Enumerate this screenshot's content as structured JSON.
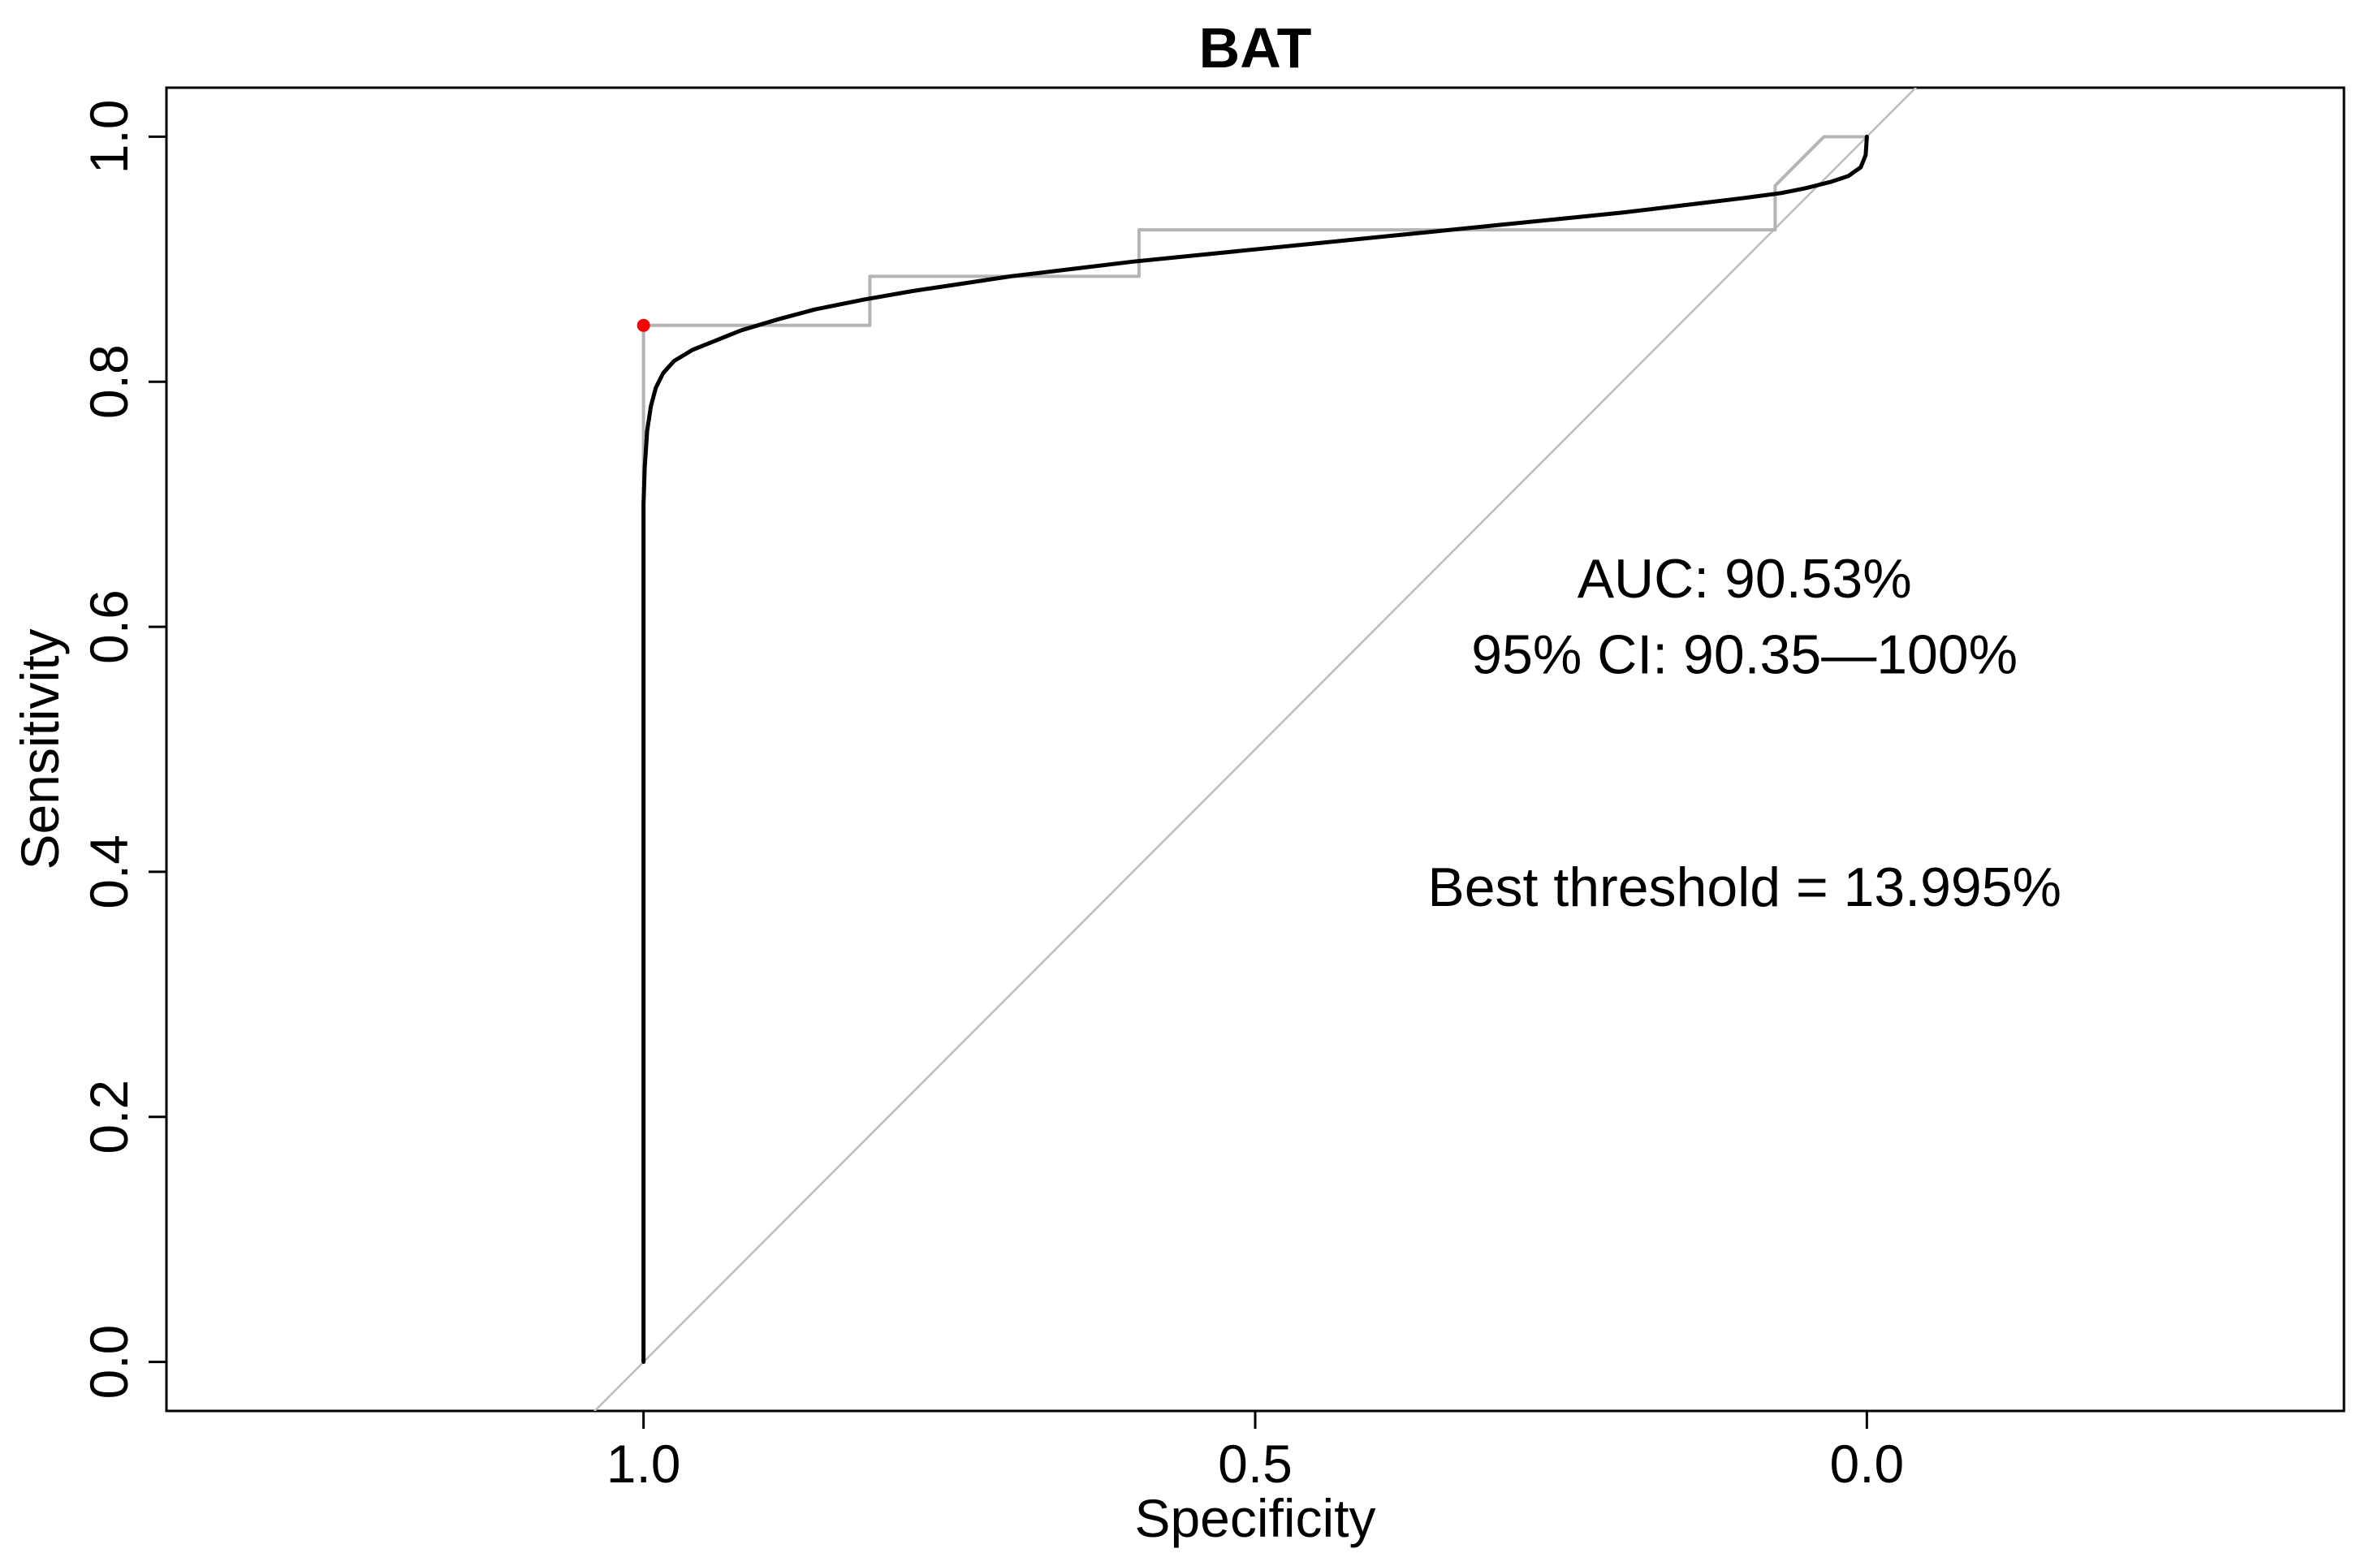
{
  "chart_data": {
    "type": "line",
    "title": "BAT",
    "xlabel": "Specificity",
    "ylabel": "Sensitivity",
    "x_reversed": true,
    "xlim": [
      1.39,
      -0.39
    ],
    "ylim": [
      -0.04,
      1.04
    ],
    "xticks": [
      {
        "value": 1.0,
        "label": "1.0"
      },
      {
        "value": 0.5,
        "label": "0.5"
      },
      {
        "value": 0.0,
        "label": "0.0"
      }
    ],
    "yticks": [
      {
        "value": 0.0,
        "label": "0.0"
      },
      {
        "value": 0.2,
        "label": "0.2"
      },
      {
        "value": 0.4,
        "label": "0.4"
      },
      {
        "value": 0.6,
        "label": "0.6"
      },
      {
        "value": 0.8,
        "label": "0.8"
      },
      {
        "value": 1.0,
        "label": "1.0"
      }
    ],
    "grid": false,
    "series": [
      {
        "kind": "smoothed-roc",
        "color": "#000000",
        "points": [
          [
            1.0,
            0.0
          ],
          [
            1.0,
            0.7
          ],
          [
            0.999,
            0.73
          ],
          [
            0.997,
            0.76
          ],
          [
            0.994,
            0.78
          ],
          [
            0.99,
            0.795
          ],
          [
            0.984,
            0.807
          ],
          [
            0.975,
            0.817
          ],
          [
            0.96,
            0.826
          ],
          [
            0.94,
            0.834
          ],
          [
            0.92,
            0.842
          ],
          [
            0.89,
            0.851
          ],
          [
            0.86,
            0.859
          ],
          [
            0.82,
            0.867
          ],
          [
            0.78,
            0.874
          ],
          [
            0.74,
            0.88
          ],
          [
            0.7,
            0.886
          ],
          [
            0.65,
            0.892
          ],
          [
            0.6,
            0.898
          ],
          [
            0.55,
            0.903
          ],
          [
            0.5,
            0.908
          ],
          [
            0.45,
            0.913
          ],
          [
            0.4,
            0.918
          ],
          [
            0.35,
            0.923
          ],
          [
            0.3,
            0.928
          ],
          [
            0.25,
            0.933
          ],
          [
            0.2,
            0.938
          ],
          [
            0.15,
            0.944
          ],
          [
            0.1,
            0.95
          ],
          [
            0.07,
            0.954
          ],
          [
            0.05,
            0.958
          ],
          [
            0.03,
            0.963
          ],
          [
            0.015,
            0.968
          ],
          [
            0.005,
            0.975
          ],
          [
            0.001,
            0.985
          ],
          [
            0.0,
            1.0
          ]
        ]
      },
      {
        "kind": "empirical-roc",
        "color": "#b4b4b4",
        "points": [
          [
            1.0,
            0.0
          ],
          [
            1.0,
            0.846
          ],
          [
            0.815,
            0.846
          ],
          [
            0.815,
            0.886
          ],
          [
            0.595,
            0.886
          ],
          [
            0.595,
            0.924
          ],
          [
            0.075,
            0.924
          ],
          [
            0.075,
            0.96
          ],
          [
            0.035,
            1.0
          ],
          [
            0.0,
            1.0
          ]
        ]
      },
      {
        "kind": "reference-diagonal",
        "color": "#bdbdbd",
        "points": [
          [
            1.04,
            -0.04
          ],
          [
            -0.04,
            1.04
          ]
        ]
      }
    ],
    "best_point": {
      "specificity": 1.0,
      "sensitivity": 0.846,
      "color": "#ff0000"
    },
    "annotations": [
      {
        "id": "auc",
        "text": "AUC: 90.53%",
        "x": 0.1,
        "y": 0.624
      },
      {
        "id": "ci",
        "text": "95% CI: 90.35—100%",
        "x": 0.1,
        "y": 0.562
      },
      {
        "id": "best",
        "text": "Best threshold = 13.995%",
        "x": 0.1,
        "y": 0.372
      }
    ]
  }
}
